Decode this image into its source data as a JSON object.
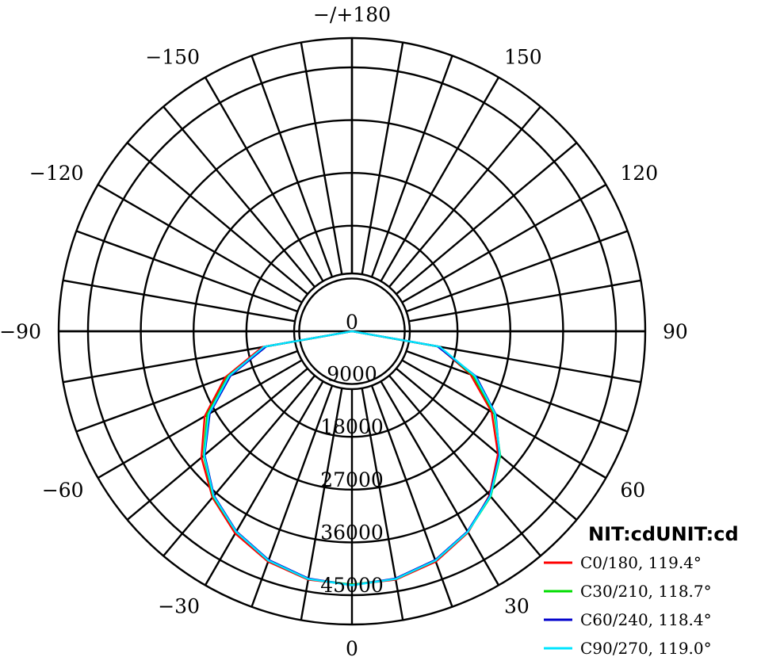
{
  "chart_data": {
    "type": "polar-line",
    "unit_label": "NIT:cdUNIT:cd",
    "radial_max": 50000,
    "radial_ticks": [
      {
        "value": 0,
        "label": "0"
      },
      {
        "value": 9000,
        "label": "9000"
      },
      {
        "value": 18000,
        "label": "18000"
      },
      {
        "value": 27000,
        "label": "27000"
      },
      {
        "value": 36000,
        "label": "36000"
      },
      {
        "value": 45000,
        "label": "45000"
      }
    ],
    "angle_labels": [
      {
        "angle": 0,
        "label": "0"
      },
      {
        "angle": 30,
        "label": "30"
      },
      {
        "angle": 60,
        "label": "60"
      },
      {
        "angle": 90,
        "label": "90"
      },
      {
        "angle": 120,
        "label": "120"
      },
      {
        "angle": 150,
        "label": "150"
      },
      {
        "angle": 180,
        "label": "−/+180"
      },
      {
        "angle": -150,
        "label": "−150"
      },
      {
        "angle": -120,
        "label": "−120"
      },
      {
        "angle": -90,
        "label": "−90"
      },
      {
        "angle": -60,
        "label": "−60"
      },
      {
        "angle": -30,
        "label": "−30"
      }
    ],
    "angles": [
      -90,
      -80,
      -70,
      -60,
      -50,
      -40,
      -30,
      -20,
      -10,
      0,
      10,
      20,
      30,
      40,
      50,
      60,
      70,
      80,
      90
    ],
    "series": [
      {
        "name": "C0/180, 119.4°",
        "color": "#ff0000",
        "values": [
          0,
          15500,
          23000,
          29000,
          33500,
          37000,
          39800,
          41800,
          43000,
          43200,
          43000,
          41800,
          39600,
          36500,
          32500,
          27500,
          21500,
          15000,
          0
        ]
      },
      {
        "name": "C30/210, 118.7°",
        "color": "#00dd00",
        "values": [
          0,
          15000,
          22500,
          28500,
          33000,
          36800,
          39500,
          41600,
          42900,
          43200,
          42900,
          41600,
          39500,
          36800,
          33000,
          28000,
          22000,
          15000,
          0
        ]
      },
      {
        "name": "C60/240, 118.4°",
        "color": "#0000cc",
        "values": [
          0,
          14800,
          22000,
          28000,
          32800,
          36600,
          39400,
          41500,
          42800,
          43300,
          42800,
          41500,
          39400,
          36600,
          32800,
          28300,
          22500,
          14800,
          0
        ]
      },
      {
        "name": "C90/270, 119.0°",
        "color": "#00e5ff",
        "values": [
          0,
          15200,
          22300,
          28200,
          32900,
          36700,
          39500,
          41600,
          42900,
          43300,
          42900,
          41600,
          39500,
          36700,
          32900,
          28200,
          22300,
          15200,
          0
        ]
      }
    ]
  }
}
